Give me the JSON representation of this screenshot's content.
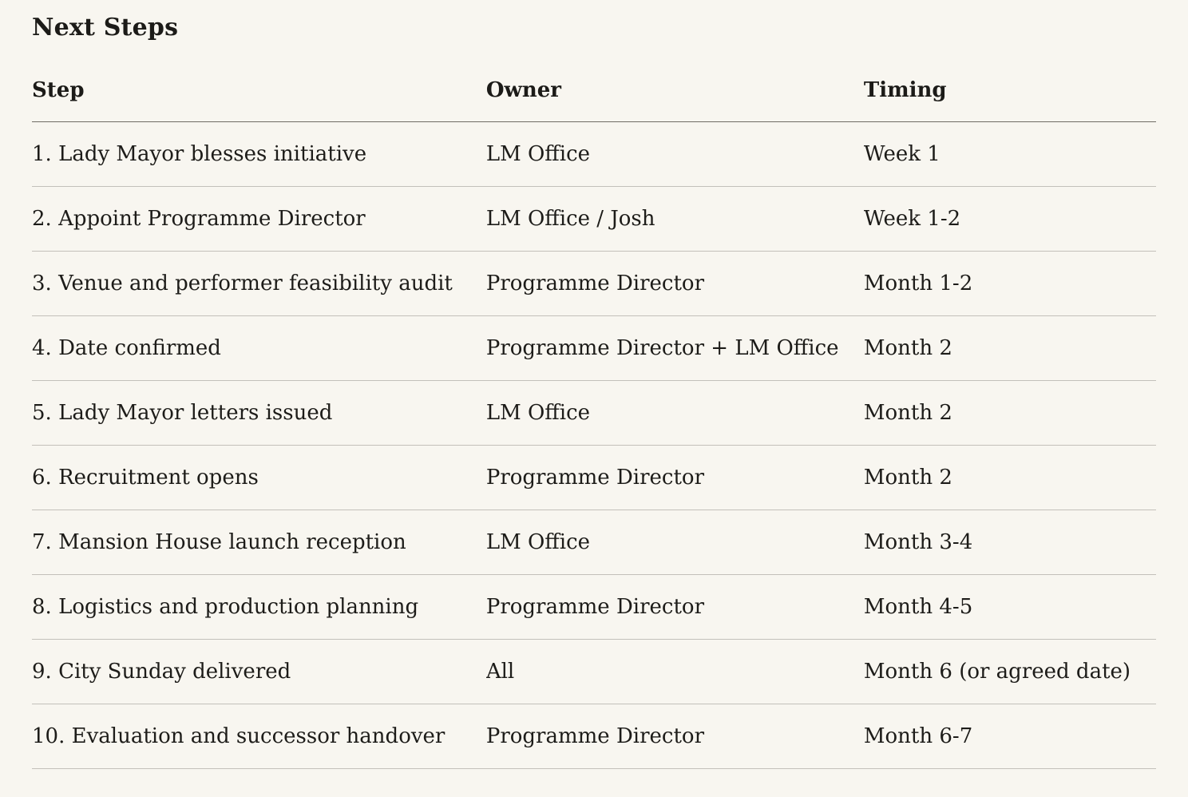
{
  "page": {
    "title": "Next Steps"
  },
  "colors": {
    "background": "#f8f6f0",
    "text": "#1d1c19",
    "header_rule": "#6f6c65",
    "row_rule": "#c3c0ba"
  },
  "table": {
    "columns": [
      "Step",
      "Owner",
      "Timing"
    ],
    "rows": [
      {
        "step": "1. Lady Mayor blesses initiative",
        "owner": "LM Office",
        "timing": "Week 1"
      },
      {
        "step": "2. Appoint Programme Director",
        "owner": "LM Office / Josh",
        "timing": "Week 1-2"
      },
      {
        "step": "3. Venue and performer feasibility audit",
        "owner": "Programme Director",
        "timing": "Month 1-2"
      },
      {
        "step": "4. Date confirmed",
        "owner": "Programme Director + LM Office",
        "timing": "Month 2"
      },
      {
        "step": "5. Lady Mayor letters issued",
        "owner": "LM Office",
        "timing": "Month 2"
      },
      {
        "step": "6. Recruitment opens",
        "owner": "Programme Director",
        "timing": "Month 2"
      },
      {
        "step": "7. Mansion House launch reception",
        "owner": "LM Office",
        "timing": "Month 3-4"
      },
      {
        "step": "8. Logistics and production planning",
        "owner": "Programme Director",
        "timing": "Month 4-5"
      },
      {
        "step": "9. City Sunday delivered",
        "owner": "All",
        "timing": "Month 6 (or agreed date)"
      },
      {
        "step": "10. Evaluation and successor handover",
        "owner": "Programme Director",
        "timing": "Month 6-7"
      }
    ]
  }
}
